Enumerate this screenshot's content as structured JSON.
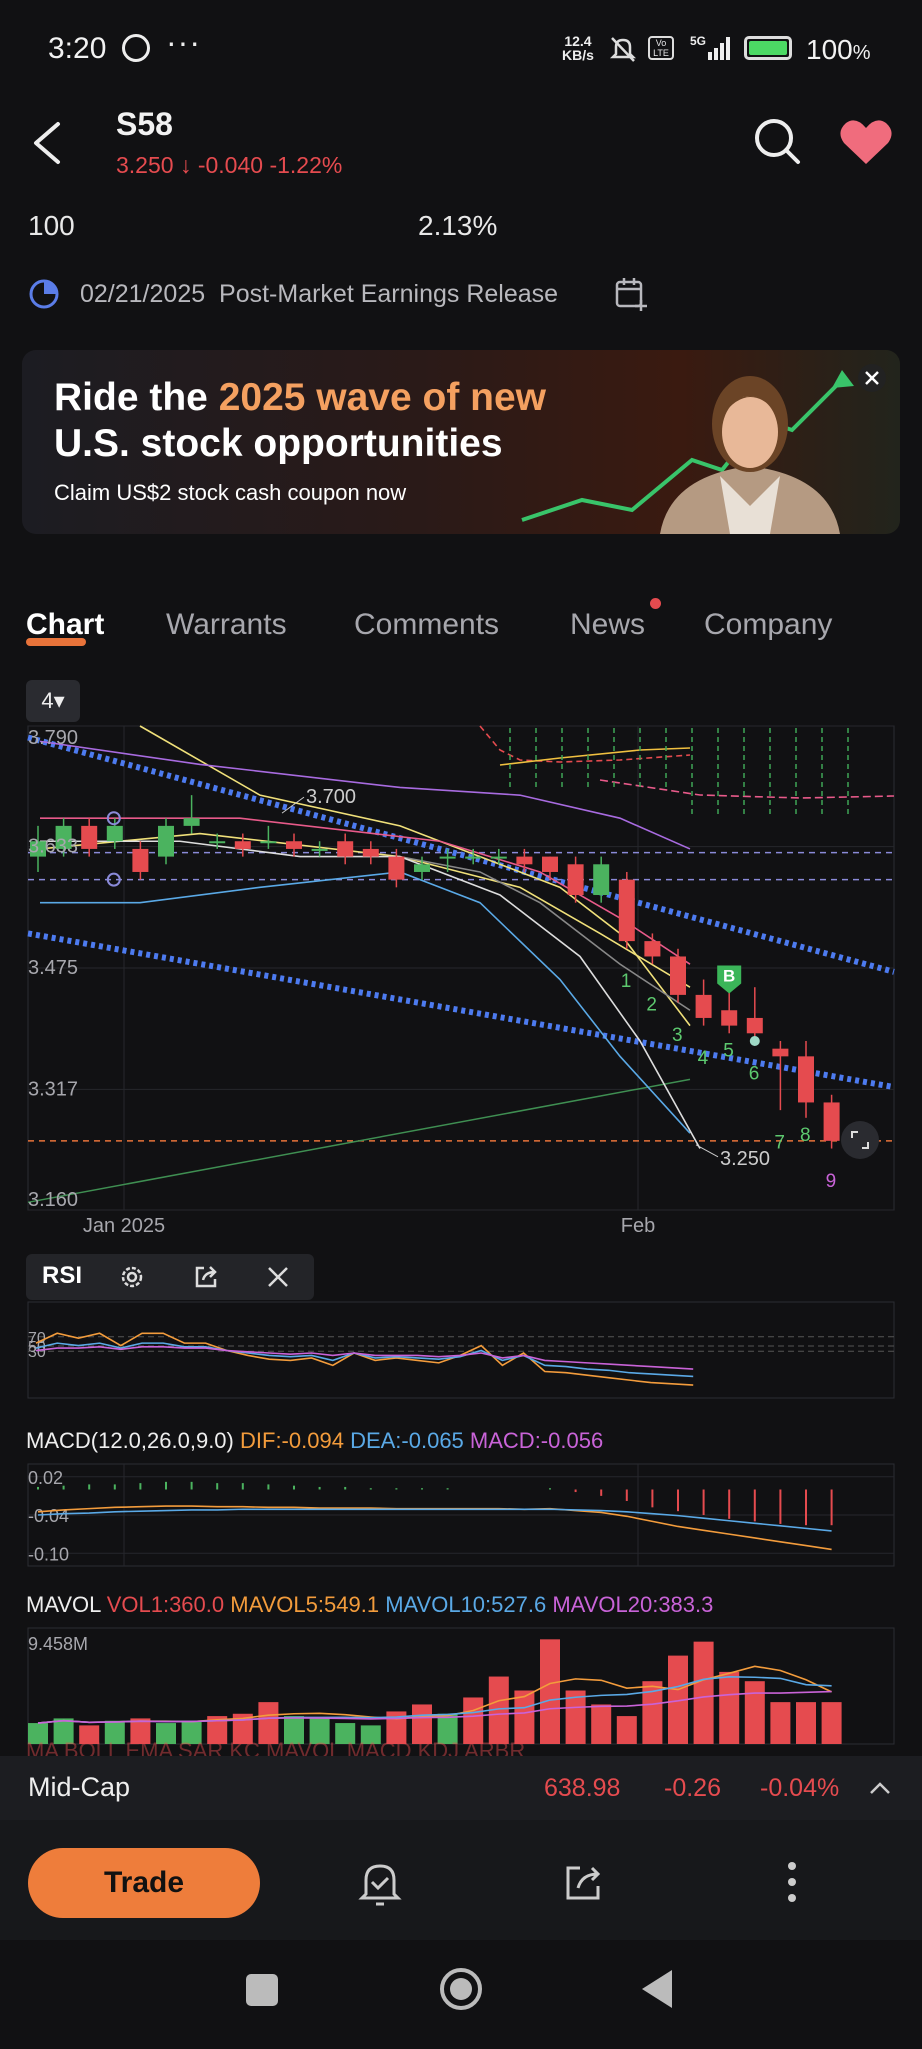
{
  "status_bar": {
    "time": "3:20",
    "speed": "12.4",
    "speed_unit": "KB/s",
    "network": "5G",
    "battery": "100",
    "battery_unit": "%"
  },
  "header": {
    "ticker": "S58",
    "price": "3.250",
    "change": "-0.040",
    "change_pct": "-1.22%"
  },
  "stats": {
    "left": "100",
    "right": "2.13%"
  },
  "earnings": {
    "date": "02/21/2025",
    "label": "Post-Market Earnings Release"
  },
  "banner": {
    "line1_a": "Ride the ",
    "line1_b": "2025 wave of new",
    "line2_a": "U.S. stock ",
    "line2_b": "opportunities",
    "line3": "Claim US$2 stock cash coupon now"
  },
  "tabs": [
    {
      "label": "Chart"
    },
    {
      "label": "Warrants"
    },
    {
      "label": "Comments"
    },
    {
      "label": "News"
    },
    {
      "label": "Company"
    }
  ],
  "period_selector": "4",
  "chart_data": [
    {
      "type": "candlestick",
      "yticks": [
        "3.790",
        "3.633",
        "3.475",
        "3.317",
        "3.160"
      ],
      "ylim": [
        3.16,
        3.79
      ],
      "x_labels": [
        "Jan 2025",
        "Feb"
      ],
      "annotations": {
        "high": "3.700",
        "last": "3.250",
        "buy_marker": "B"
      },
      "sequence_labels": [
        "1",
        "2",
        "3",
        "4",
        "5",
        "6",
        "7",
        "8",
        "9"
      ],
      "candles": [
        {
          "o": 3.62,
          "c": 3.64,
          "h": 3.66,
          "l": 3.6
        },
        {
          "o": 3.63,
          "c": 3.66,
          "h": 3.67,
          "l": 3.62
        },
        {
          "o": 3.66,
          "c": 3.63,
          "h": 3.67,
          "l": 3.62
        },
        {
          "o": 3.64,
          "c": 3.66,
          "h": 3.67,
          "l": 3.63
        },
        {
          "o": 3.63,
          "c": 3.6,
          "h": 3.64,
          "l": 3.59
        },
        {
          "o": 3.62,
          "c": 3.66,
          "h": 3.67,
          "l": 3.61
        },
        {
          "o": 3.66,
          "c": 3.67,
          "h": 3.7,
          "l": 3.65
        },
        {
          "o": 3.64,
          "c": 3.64,
          "h": 3.65,
          "l": 3.63
        },
        {
          "o": 3.64,
          "c": 3.63,
          "h": 3.65,
          "l": 3.62
        },
        {
          "o": 3.64,
          "c": 3.64,
          "h": 3.66,
          "l": 3.63
        },
        {
          "o": 3.64,
          "c": 3.63,
          "h": 3.65,
          "l": 3.62
        },
        {
          "o": 3.63,
          "c": 3.63,
          "h": 3.64,
          "l": 3.62
        },
        {
          "o": 3.64,
          "c": 3.62,
          "h": 3.65,
          "l": 3.61
        },
        {
          "o": 3.63,
          "c": 3.62,
          "h": 3.64,
          "l": 3.61
        },
        {
          "o": 3.62,
          "c": 3.59,
          "h": 3.63,
          "l": 3.58
        },
        {
          "o": 3.6,
          "c": 3.61,
          "h": 3.62,
          "l": 3.59
        },
        {
          "o": 3.62,
          "c": 3.62,
          "h": 3.63,
          "l": 3.6
        },
        {
          "o": 3.62,
          "c": 3.62,
          "h": 3.63,
          "l": 3.61
        },
        {
          "o": 3.62,
          "c": 3.62,
          "h": 3.63,
          "l": 3.61
        },
        {
          "o": 3.62,
          "c": 3.61,
          "h": 3.63,
          "l": 3.6
        },
        {
          "o": 3.62,
          "c": 3.6,
          "h": 3.62,
          "l": 3.59
        },
        {
          "o": 3.61,
          "c": 3.57,
          "h": 3.62,
          "l": 3.56
        },
        {
          "o": 3.57,
          "c": 3.61,
          "h": 3.62,
          "l": 3.56
        },
        {
          "o": 3.59,
          "c": 3.51,
          "h": 3.6,
          "l": 3.5
        },
        {
          "o": 3.51,
          "c": 3.49,
          "h": 3.52,
          "l": 3.48
        },
        {
          "o": 3.49,
          "c": 3.44,
          "h": 3.5,
          "l": 3.43
        },
        {
          "o": 3.44,
          "c": 3.41,
          "h": 3.46,
          "l": 3.4
        },
        {
          "o": 3.42,
          "c": 3.4,
          "h": 3.45,
          "l": 3.39
        },
        {
          "o": 3.41,
          "c": 3.39,
          "h": 3.45,
          "l": 3.38
        },
        {
          "o": 3.37,
          "c": 3.36,
          "h": 3.38,
          "l": 3.29
        },
        {
          "o": 3.36,
          "c": 3.3,
          "h": 3.38,
          "l": 3.28
        },
        {
          "o": 3.3,
          "c": 3.25,
          "h": 3.31,
          "l": 3.24
        }
      ]
    },
    {
      "type": "line",
      "name": "RSI",
      "yticks": [
        "70",
        "50",
        "30"
      ],
      "ylim": [
        0,
        100
      ],
      "series": [
        {
          "color": "#f39c3c",
          "values": [
            58,
            66,
            62,
            66,
            56,
            66,
            66,
            58,
            58,
            52,
            48,
            45,
            44,
            46,
            40,
            50,
            44,
            46,
            44,
            42,
            48,
            56,
            40,
            50,
            35,
            34,
            32,
            30,
            28,
            26,
            25,
            24
          ]
        },
        {
          "color": "#5aa9e6",
          "values": [
            54,
            58,
            56,
            58,
            54,
            58,
            58,
            55,
            55,
            52,
            50,
            48,
            47,
            48,
            44,
            50,
            46,
            47,
            46,
            45,
            47,
            52,
            44,
            48,
            40,
            39,
            37,
            36,
            34,
            33,
            32,
            31
          ]
        },
        {
          "color": "#c963d8",
          "values": [
            52,
            54,
            54,
            55,
            53,
            55,
            55,
            54,
            54,
            52,
            51,
            50,
            49,
            50,
            48,
            50,
            48,
            48,
            48,
            47,
            48,
            50,
            46,
            48,
            44,
            43,
            42,
            41,
            40,
            39,
            38,
            37
          ]
        }
      ]
    },
    {
      "type": "bar",
      "name": "MACD",
      "labels": {
        "title": "MACD(12.0,26.0,9.0)",
        "dif": "DIF:-0.094",
        "dea": "DEA:-0.065",
        "macd": "MACD:-0.056"
      },
      "yticks": [
        "0.02",
        "-0.04",
        "-0.10"
      ],
      "ylim": [
        -0.12,
        0.04
      ],
      "histogram": [
        0.004,
        0.006,
        0.008,
        0.008,
        0.01,
        0.012,
        0.012,
        0.01,
        0.01,
        0.008,
        0.006,
        0.004,
        0.004,
        0.002,
        0.002,
        0.002,
        0.002,
        0.0,
        0.0,
        0.0,
        0.002,
        -0.004,
        -0.01,
        -0.018,
        -0.028,
        -0.034,
        -0.04,
        -0.046,
        -0.05,
        -0.054,
        -0.056,
        -0.056
      ],
      "dif": [
        -0.035,
        -0.032,
        -0.03,
        -0.028,
        -0.027,
        -0.026,
        -0.026,
        -0.027,
        -0.027,
        -0.028,
        -0.028,
        -0.029,
        -0.029,
        -0.029,
        -0.03,
        -0.03,
        -0.03,
        -0.03,
        -0.03,
        -0.031,
        -0.03,
        -0.033,
        -0.036,
        -0.042,
        -0.05,
        -0.058,
        -0.064,
        -0.07,
        -0.076,
        -0.082,
        -0.088,
        -0.094
      ],
      "dea": [
        -0.04,
        -0.038,
        -0.037,
        -0.035,
        -0.034,
        -0.033,
        -0.032,
        -0.032,
        -0.031,
        -0.031,
        -0.031,
        -0.031,
        -0.031,
        -0.031,
        -0.031,
        -0.031,
        -0.031,
        -0.031,
        -0.031,
        -0.031,
        -0.031,
        -0.032,
        -0.033,
        -0.035,
        -0.038,
        -0.041,
        -0.045,
        -0.049,
        -0.053,
        -0.057,
        -0.061,
        -0.065
      ]
    },
    {
      "type": "bar",
      "name": "MAVOL",
      "labels": {
        "title": "MAVOL",
        "vol1": "VOL1:360.0",
        "ma5": "MAVOL5:549.1",
        "ma10": "MAVOL10:527.6",
        "ma20": "MAVOL20:383.3"
      },
      "yticks": [
        "9.458M"
      ],
      "ylim": [
        0,
        9.458
      ],
      "volumes": [
        1.8,
        2.2,
        1.6,
        2.0,
        2.2,
        1.8,
        2.0,
        2.4,
        2.6,
        3.6,
        2.4,
        2.2,
        1.8,
        1.6,
        2.8,
        3.4,
        2.6,
        4.0,
        5.8,
        4.6,
        9.0,
        4.6,
        3.4,
        2.4,
        5.4,
        7.6,
        8.8,
        6.2,
        5.4,
        3.6,
        3.6,
        3.6
      ],
      "up": [
        true,
        true,
        false,
        true,
        false,
        true,
        true,
        false,
        false,
        false,
        true,
        true,
        true,
        true,
        false,
        false,
        true,
        false,
        false,
        false,
        false,
        false,
        false,
        false,
        false,
        false,
        false,
        false,
        false,
        false,
        false,
        false
      ]
    }
  ],
  "indicator_tabs_hint": "MA  BOLL  EMA  SAR  KC  MAVOL  MACD  KDJ  ARBR",
  "index_bar": {
    "name": "Mid-Cap",
    "value": "638.98",
    "change": "-0.26",
    "change_pct": "-0.04%"
  },
  "bottom": {
    "trade_label": "Trade"
  },
  "colors": {
    "up": "#4bb35f",
    "down": "#e54b4f",
    "accent": "#ee7d3b",
    "bg": "#111113"
  }
}
